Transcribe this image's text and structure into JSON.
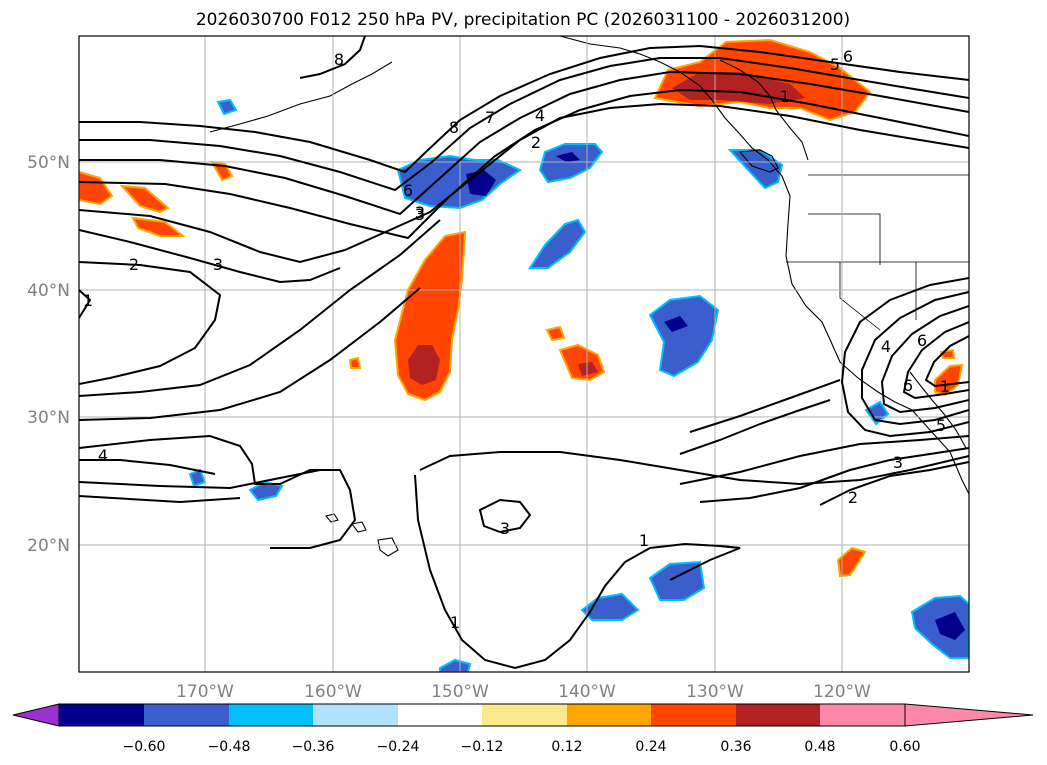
{
  "title": "2026030700 F012 250 hPa PV, precipitation PC (2026031100 - 2026031200)",
  "map": {
    "lon_labels": [
      "170°W",
      "160°W",
      "150°W",
      "140°W",
      "130°W",
      "120°W"
    ],
    "lat_labels": [
      "50°N",
      "40°N",
      "30°N",
      "20°N"
    ],
    "contour_labels": [
      "8",
      "6",
      "5",
      "7",
      "4",
      "2",
      "3",
      "3",
      "1",
      "2",
      "3",
      "1",
      "4",
      "3",
      "1",
      "1",
      "4",
      "6",
      "6",
      "5",
      "3",
      "2",
      "1",
      "8",
      "6"
    ]
  },
  "colorbar": {
    "ticks": [
      "−0.60",
      "−0.48",
      "−0.36",
      "−0.24",
      "−0.12",
      "0.12",
      "0.24",
      "0.36",
      "0.48",
      "0.60"
    ],
    "colors": [
      "#9b30d0",
      "#00008c",
      "#3a5fcd",
      "#00bfff",
      "#b0e2ff",
      "#ffffff",
      "#fce88c",
      "#ffa500",
      "#ff4500",
      "#b22222",
      "#ff88aa"
    ]
  }
}
